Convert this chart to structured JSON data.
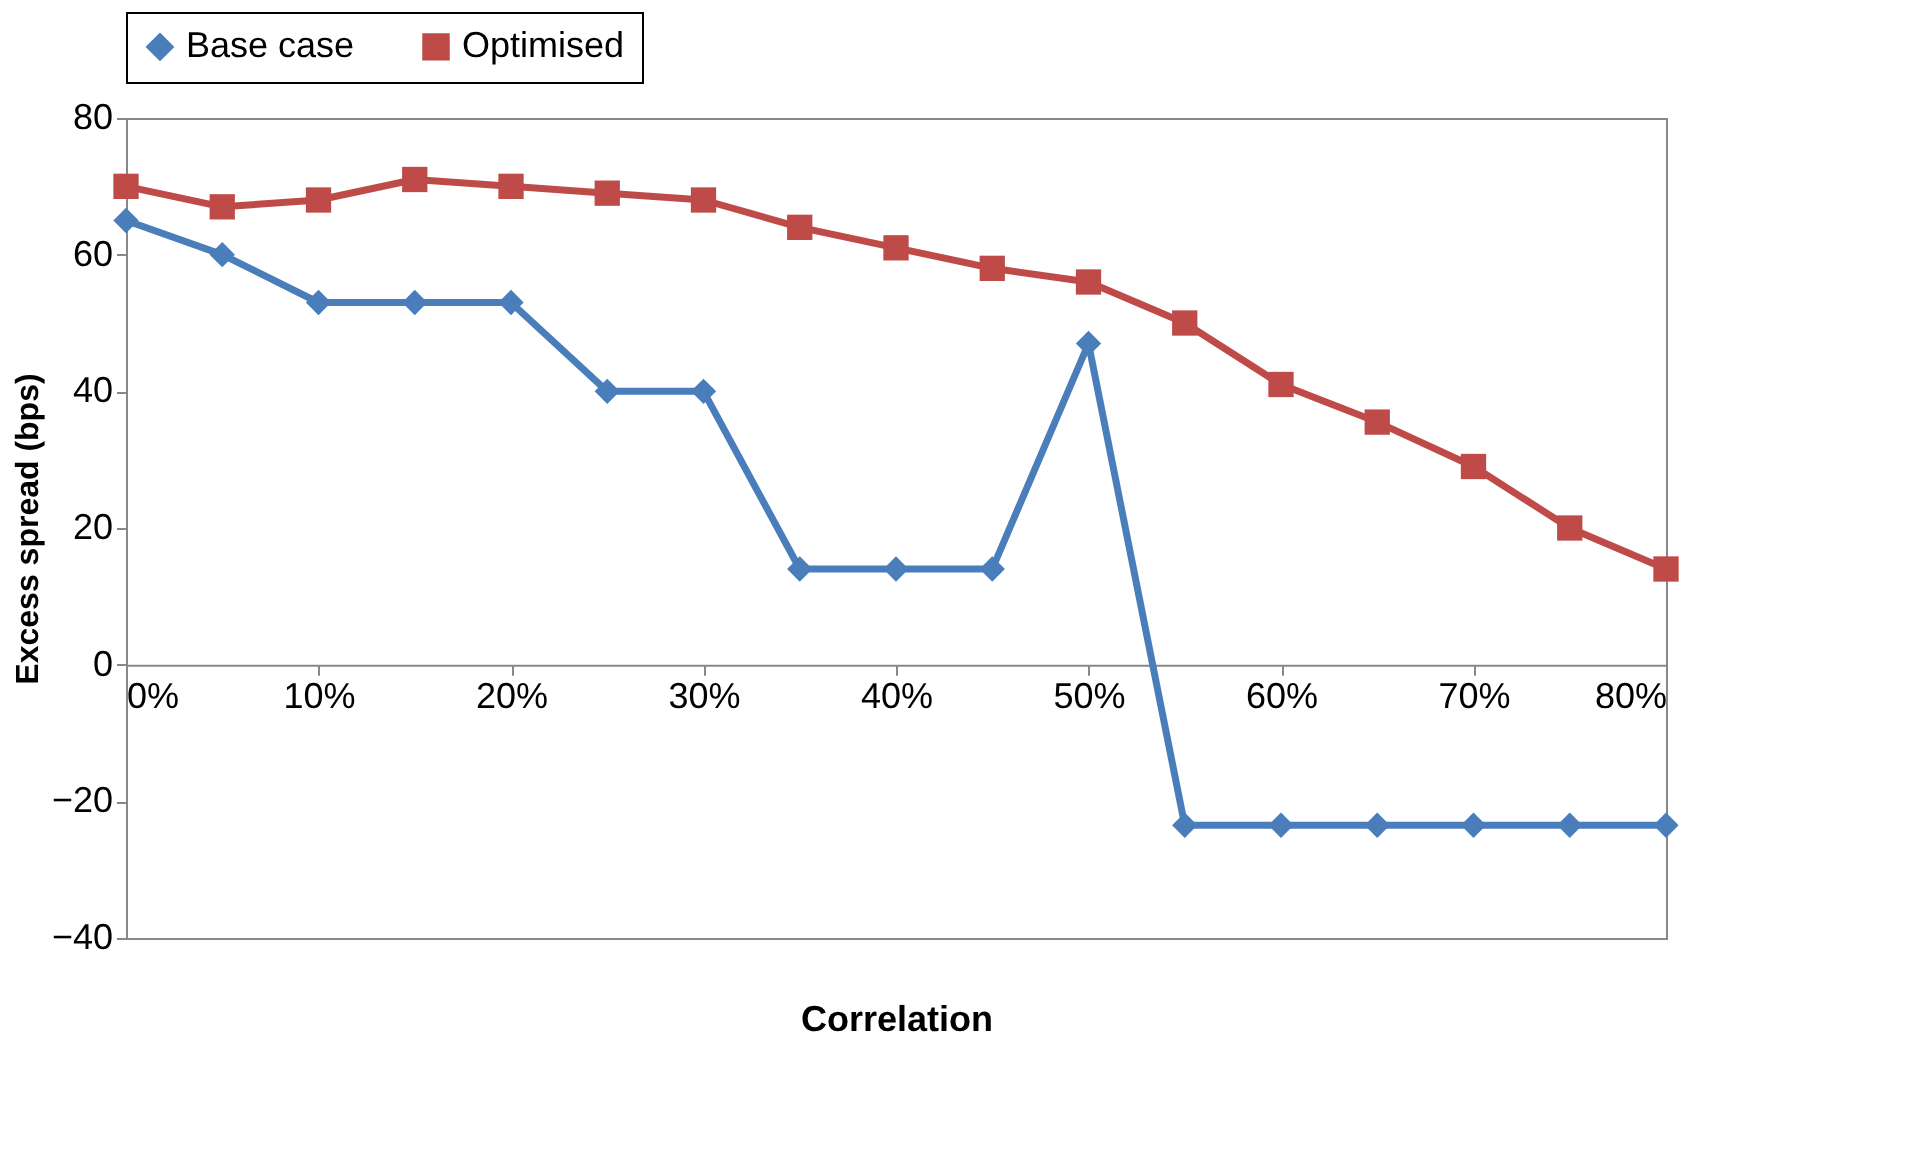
{
  "chart_data": {
    "type": "line",
    "xlabel": "Correlation",
    "ylabel": "Excess spread (bps)",
    "x": [
      0,
      5,
      10,
      15,
      20,
      25,
      30,
      35,
      40,
      45,
      50,
      55,
      60,
      65,
      70,
      75,
      80
    ],
    "xlim": [
      0,
      80
    ],
    "xticks": [
      {
        "value": 0,
        "label": "0%"
      },
      {
        "value": 10,
        "label": "10%"
      },
      {
        "value": 20,
        "label": "20%"
      },
      {
        "value": 30,
        "label": "30%"
      },
      {
        "value": 40,
        "label": "40%"
      },
      {
        "value": 50,
        "label": "50%"
      },
      {
        "value": 60,
        "label": "60%"
      },
      {
        "value": 70,
        "label": "70%"
      },
      {
        "value": 80,
        "label": "80%"
      }
    ],
    "ylim": [
      -40,
      80
    ],
    "yticks": [
      -40,
      -20,
      0,
      20,
      40,
      60,
      80
    ],
    "grid": false,
    "legend": "top",
    "line_style": "solid",
    "series": [
      {
        "name": "Base case",
        "color": "#4a7ebb",
        "marker": "diamond",
        "values": [
          65,
          60,
          53,
          53,
          53,
          40,
          40,
          14,
          14,
          14,
          47,
          -23.5,
          -23.5,
          -23.5,
          -23.5,
          -23.5,
          -23.5
        ]
      },
      {
        "name": "Optimised",
        "color": "#be4b48",
        "marker": "square",
        "values": [
          70,
          67,
          68,
          71,
          70,
          69,
          68,
          64,
          61,
          58,
          56,
          50,
          41,
          35.5,
          29,
          20,
          14
        ]
      }
    ]
  }
}
